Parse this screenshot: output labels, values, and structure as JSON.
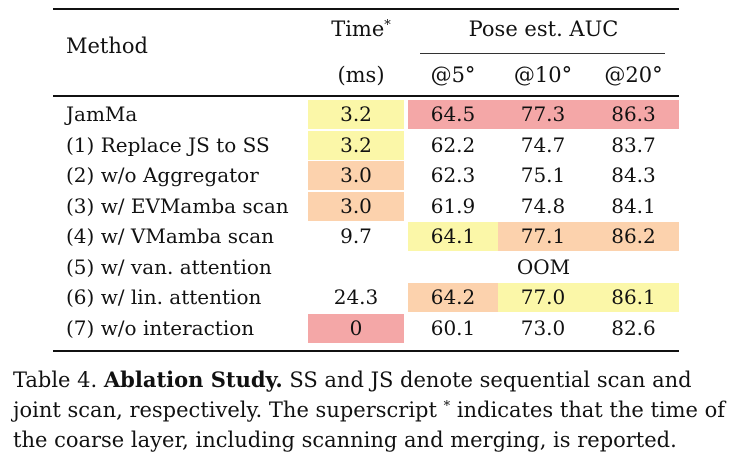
{
  "table": {
    "header": {
      "method": "Method",
      "time_label": "Time",
      "time_sup": "*",
      "time_unit": "(ms)",
      "pose_group": "Pose est. AUC",
      "auc5": "@5°",
      "auc10": "@10°",
      "auc20": "@20°"
    },
    "rows": [
      {
        "method": "JamMa",
        "time": "3.2",
        "auc5": "64.5",
        "auc10": "77.3",
        "auc20": "86.3"
      },
      {
        "method": "(1) Replace JS to SS",
        "time": "3.2",
        "auc5": "62.2",
        "auc10": "74.7",
        "auc20": "83.7"
      },
      {
        "method": "(2) w/o Aggregator",
        "time": "3.0",
        "auc5": "62.3",
        "auc10": "75.1",
        "auc20": "84.3"
      },
      {
        "method": "(3) w/ EVMamba scan",
        "time": "3.0",
        "auc5": "61.9",
        "auc10": "74.8",
        "auc20": "84.1"
      },
      {
        "method": "(4) w/ VMamba scan",
        "time": "9.7",
        "auc5": "64.1",
        "auc10": "77.1",
        "auc20": "86.2"
      },
      {
        "method": "(5) w/ van. attention",
        "oom": "OOM"
      },
      {
        "method": "(6) w/ lin. attention",
        "time": "24.3",
        "auc5": "64.2",
        "auc10": "77.0",
        "auc20": "86.1"
      },
      {
        "method": "(7) w/o interaction",
        "time": "0",
        "auc5": "60.1",
        "auc10": "73.0",
        "auc20": "82.6"
      }
    ],
    "highlight_colors": {
      "red": "#f4a7a7",
      "orange": "#fcd2ad",
      "yellow": "#fbf7a8"
    }
  },
  "caption": {
    "prefix": "Table 4.",
    "bold": "Ablation Study.",
    "line1_rest": "SS and JS denote sequential scan and",
    "line2": "joint scan, respectively. The superscript",
    "line2_sup": "*",
    "line2_rest": "indicates that the time of",
    "line3": "the coarse layer, including scanning and merging, is reported."
  }
}
